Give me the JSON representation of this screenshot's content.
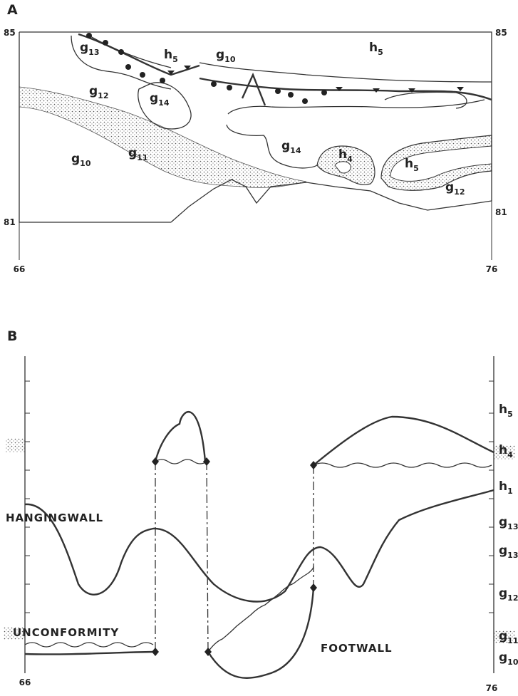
{
  "panel_a": {
    "label": "A",
    "axis_labels": {
      "top_left": "85",
      "top_right": "85",
      "bottom_left": "81",
      "bottom_right": "81",
      "x_left": "66",
      "x_right": "76"
    },
    "units": [
      {
        "base": "g",
        "sub": "13"
      },
      {
        "base": "h",
        "sub": "5"
      },
      {
        "base": "g",
        "sub": "10"
      },
      {
        "base": "h",
        "sub": "5"
      },
      {
        "base": "g",
        "sub": "12"
      },
      {
        "base": "g",
        "sub": "14"
      },
      {
        "base": "g",
        "sub": "10"
      },
      {
        "base": "g",
        "sub": "11"
      },
      {
        "base": "g",
        "sub": "14"
      },
      {
        "base": "h",
        "sub": "4"
      },
      {
        "base": "h",
        "sub": "5"
      },
      {
        "base": "g",
        "sub": "12"
      }
    ]
  },
  "panel_b": {
    "label": "B",
    "axis_labels": {
      "x_left": "66",
      "x_right": "76"
    },
    "annotations": [
      "HANGINGWALL",
      "UNCONFORMITY",
      "FOOTWALL"
    ],
    "units": [
      {
        "base": "h",
        "sub": "5"
      },
      {
        "base": "h",
        "sub": "4"
      },
      {
        "base": "h",
        "sub": "1"
      },
      {
        "base": "g",
        "sub": "13"
      },
      {
        "base": "g",
        "sub": "13"
      },
      {
        "base": "g",
        "sub": "12"
      },
      {
        "base": "g",
        "sub": "11"
      },
      {
        "base": "g",
        "sub": "10"
      }
    ]
  }
}
